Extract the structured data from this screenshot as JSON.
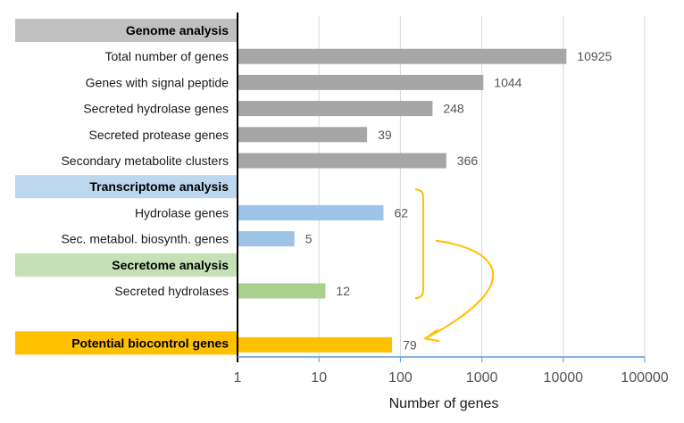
{
  "chart_data": {
    "type": "bar",
    "orientation": "horizontal",
    "x_scale": "log",
    "xlim": [
      1,
      100000
    ],
    "xticks": [
      "1",
      "10",
      "100",
      "1000",
      "10000",
      "100000"
    ],
    "xlabel": "Number of genes",
    "grid": "vertical",
    "rows": [
      {
        "kind": "section",
        "label": "Genome analysis",
        "color": "#c0c0c0"
      },
      {
        "kind": "bar",
        "label": "Total number of genes",
        "value": 10925,
        "value_label": "10925",
        "color": "#a6a6a6"
      },
      {
        "kind": "bar",
        "label": "Genes with signal peptide",
        "value": 1044,
        "value_label": "1044",
        "color": "#a6a6a6"
      },
      {
        "kind": "bar",
        "label": "Secreted hydrolase genes",
        "value": 248,
        "value_label": "248",
        "color": "#a6a6a6"
      },
      {
        "kind": "bar",
        "label": "Secreted protease genes",
        "value": 39,
        "value_label": "39",
        "color": "#a6a6a6"
      },
      {
        "kind": "bar",
        "label": "Secondary metabolite clusters",
        "value": 366,
        "value_label": "366",
        "color": "#a6a6a6"
      },
      {
        "kind": "section",
        "label": "Transcriptome analysis",
        "color": "#bdd7ee"
      },
      {
        "kind": "bar",
        "label": "Hydrolase genes",
        "value": 62,
        "value_label": "62",
        "color": "#9dc3e6"
      },
      {
        "kind": "bar",
        "label": "Sec. metabol. biosynth. genes",
        "value": 5,
        "value_label": "5",
        "color": "#9dc3e6"
      },
      {
        "kind": "section",
        "label": "Secretome analysis",
        "color": "#c5e0b4"
      },
      {
        "kind": "bar",
        "label": "Secreted hydrolases",
        "value": 12,
        "value_label": "12",
        "color": "#a9d18e"
      },
      {
        "kind": "spacer"
      },
      {
        "kind": "section",
        "label": "Potential biocontrol genes",
        "color": "#ffc000",
        "value": 79,
        "value_label": "79",
        "bar_color": "#ffc000"
      }
    ],
    "annotation_color": "#ffc000",
    "axis_color": "#5b9bd5",
    "grid_color": "#d9d9d9"
  }
}
